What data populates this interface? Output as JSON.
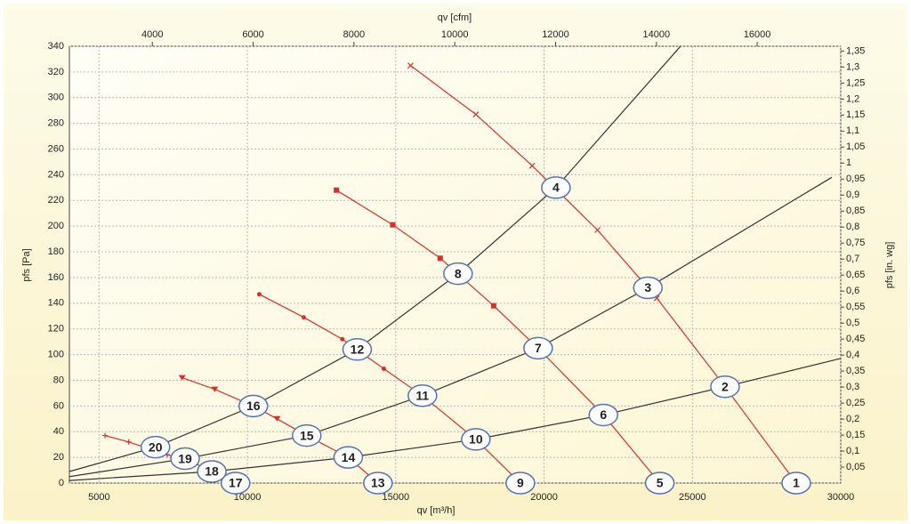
{
  "chart_data": {
    "type": "line",
    "xlabel": "qv [m³/h]",
    "x2label": "qv [cfm]",
    "ylabel": "pfs [Pa]",
    "y2label": "pfs [in. wg]",
    "xlim": [
      4000,
      30000
    ],
    "xticks": [
      5000,
      10000,
      15000,
      20000,
      25000,
      30000
    ],
    "x2lim": [
      2354,
      17657
    ],
    "x2ticks": [
      4000,
      6000,
      8000,
      10000,
      12000,
      14000,
      16000
    ],
    "ylim": [
      0,
      340
    ],
    "yticks": [
      0,
      20,
      40,
      60,
      80,
      100,
      120,
      140,
      160,
      180,
      200,
      220,
      240,
      260,
      280,
      300,
      320,
      340
    ],
    "y2lim": [
      0,
      1.365
    ],
    "y2ticks": [
      {
        "value": 0.05,
        "label": "0,05"
      },
      {
        "value": 0.1,
        "label": "0,1"
      },
      {
        "value": 0.15,
        "label": "0,15"
      },
      {
        "value": 0.2,
        "label": "0,2"
      },
      {
        "value": 0.25,
        "label": "0,25"
      },
      {
        "value": 0.3,
        "label": "0,3"
      },
      {
        "value": 0.35,
        "label": "0,35"
      },
      {
        "value": 0.4,
        "label": "0,4"
      },
      {
        "value": 0.45,
        "label": "0,45"
      },
      {
        "value": 0.5,
        "label": "0,5"
      },
      {
        "value": 0.55,
        "label": "0,55"
      },
      {
        "value": 0.6,
        "label": "0,6"
      },
      {
        "value": 0.65,
        "label": "0,65"
      },
      {
        "value": 0.7,
        "label": "0,7"
      },
      {
        "value": 0.75,
        "label": "0,75"
      },
      {
        "value": 0.8,
        "label": "0,8"
      },
      {
        "value": 0.85,
        "label": "0,85"
      },
      {
        "value": 0.9,
        "label": "0,9"
      },
      {
        "value": 0.95,
        "label": "0,95"
      },
      {
        "value": 1,
        "label": "1"
      },
      {
        "value": 1.05,
        "label": "1,05"
      },
      {
        "value": 1.1,
        "label": "1,1"
      },
      {
        "value": 1.15,
        "label": "1,15"
      },
      {
        "value": 1.2,
        "label": "1,2"
      },
      {
        "value": 1.25,
        "label": "1,25"
      },
      {
        "value": 1.3,
        "label": "1,3"
      },
      {
        "value": 1.35,
        "label": "1,35"
      }
    ],
    "grid": true,
    "series": [
      {
        "color": "#333333",
        "marker": "none",
        "x": [
          4000,
          6900,
          10200,
          13700,
          17100,
          20400,
          24600
        ],
        "values": [
          9,
          28,
          60,
          104,
          163,
          230,
          340
        ]
      },
      {
        "color": "#333333",
        "marker": "none",
        "x": [
          4000,
          7900,
          12000,
          15900,
          19800,
          23500,
          29700
        ],
        "values": [
          5,
          19,
          37,
          68,
          105,
          152,
          238
        ]
      },
      {
        "color": "#333333",
        "marker": "none",
        "x": [
          4000,
          8800,
          13400,
          17700,
          22000,
          26100,
          30000
        ],
        "values": [
          2,
          9,
          20,
          34,
          53,
          75,
          97
        ]
      },
      {
        "color": "#d9302a",
        "marker": "x",
        "x": [
          15500,
          17700,
          19600,
          21800,
          23800,
          26100,
          28500
        ],
        "values": [
          325,
          287,
          247,
          197,
          144,
          75,
          0
        ]
      },
      {
        "color": "#d9302a",
        "marker": "square",
        "x": [
          13000,
          14900,
          16500,
          18300,
          19800,
          22000,
          23900
        ],
        "values": [
          228,
          201,
          175,
          138,
          105,
          53,
          0
        ]
      },
      {
        "color": "#d9302a",
        "marker": "dot",
        "x": [
          10400,
          11900,
          13200,
          14600,
          15900,
          17700,
          19200
        ],
        "values": [
          147,
          129,
          112,
          89,
          68,
          34,
          0
        ]
      },
      {
        "color": "#d9302a",
        "marker": "triangle",
        "x": [
          7800,
          8900,
          10200,
          11000,
          12000,
          13400,
          14400
        ],
        "values": [
          82,
          73,
          60,
          50,
          37,
          20,
          0
        ]
      },
      {
        "color": "#d9302a",
        "marker": "plus",
        "x": [
          5200,
          6000,
          7300,
          7900,
          8800,
          9600
        ],
        "values": [
          37,
          32,
          22,
          19,
          9,
          0
        ]
      }
    ],
    "operating_points": {
      "labels": [
        "1",
        "2",
        "3",
        "4",
        "5",
        "6",
        "7",
        "8",
        "9",
        "10",
        "11",
        "12",
        "13",
        "14",
        "15",
        "16",
        "17",
        "18",
        "19",
        "20"
      ],
      "x": [
        28500,
        26100,
        23500,
        20400,
        23900,
        22000,
        19800,
        17100,
        19200,
        17700,
        15900,
        13700,
        14400,
        13400,
        12000,
        10200,
        9600,
        8800,
        7900,
        6900
      ],
      "y": [
        0,
        75,
        152,
        230,
        0,
        53,
        105,
        163,
        0,
        34,
        68,
        104,
        0,
        20,
        37,
        60,
        0,
        9,
        19,
        28
      ]
    }
  }
}
